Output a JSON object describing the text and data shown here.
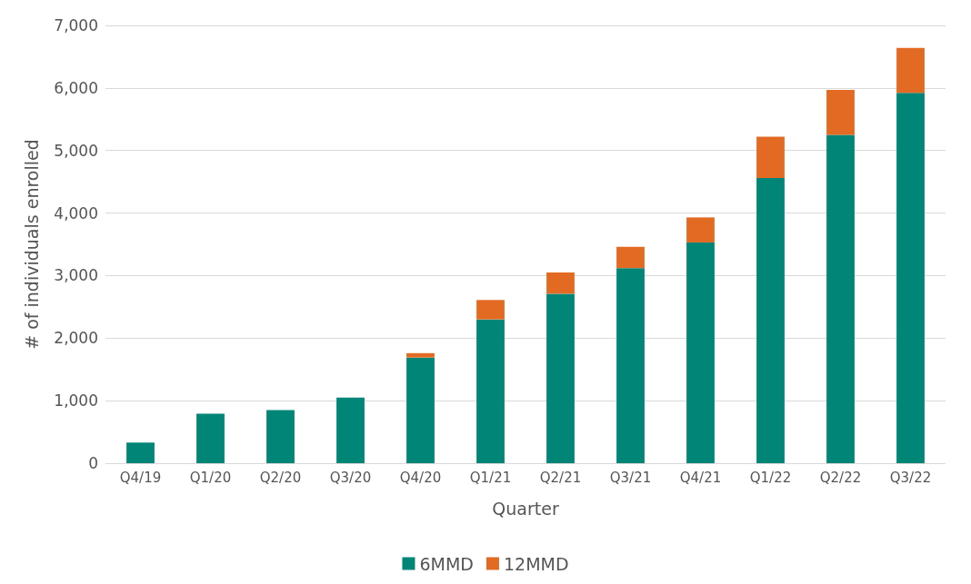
{
  "chart_data": {
    "type": "bar",
    "stacked": true,
    "xlabel": "Quarter",
    "ylabel": "# of individuals enrolled",
    "categories": [
      "Q4/19",
      "Q1/20",
      "Q2/20",
      "Q3/20",
      "Q4/20",
      "Q1/21",
      "Q2/21",
      "Q3/21",
      "Q4/21",
      "Q1/22",
      "Q2/22",
      "Q3/22"
    ],
    "series": [
      {
        "name": "6MMD",
        "color": "#008577",
        "values": [
          330,
          790,
          850,
          1050,
          1690,
          2300,
          2710,
          3120,
          3530,
          4560,
          5250,
          5920
        ]
      },
      {
        "name": "12MMD",
        "color": "#e26a22",
        "values": [
          0,
          0,
          0,
          0,
          70,
          310,
          340,
          340,
          400,
          660,
          720,
          720
        ]
      }
    ],
    "ylim": [
      0,
      7000
    ],
    "yticks": [
      0,
      {
        "value": 1000,
        "label": "1,000"
      },
      {
        "value": 2000,
        "label": "2,000"
      },
      {
        "value": 3000,
        "label": "3,000"
      },
      {
        "value": 4000,
        "label": "4,000"
      },
      {
        "value": 5000,
        "label": "5,000"
      },
      {
        "value": 6000,
        "label": "6,000"
      },
      {
        "value": 7000,
        "label": "7,000"
      }
    ],
    "grid": "y",
    "legend": "bottom"
  }
}
